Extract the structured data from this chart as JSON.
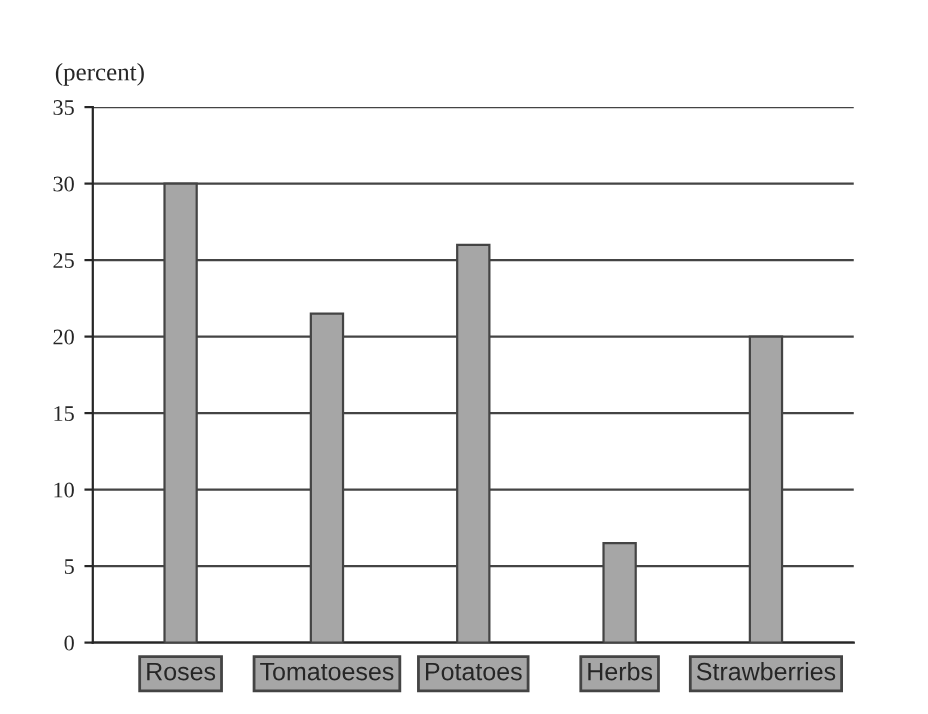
{
  "chart_data": {
    "type": "bar",
    "ylabel": "(percent)",
    "categories": [
      "Roses",
      "Tomatoeses",
      "Potatoes",
      "Herbs",
      "Strawberries"
    ],
    "values": [
      30,
      21.5,
      26,
      6.5,
      20
    ],
    "color": "#a6a6a6",
    "ylim": [
      0,
      35
    ],
    "yticks": [
      0,
      5,
      10,
      15,
      20,
      25,
      30,
      35
    ],
    "grid": "y"
  }
}
